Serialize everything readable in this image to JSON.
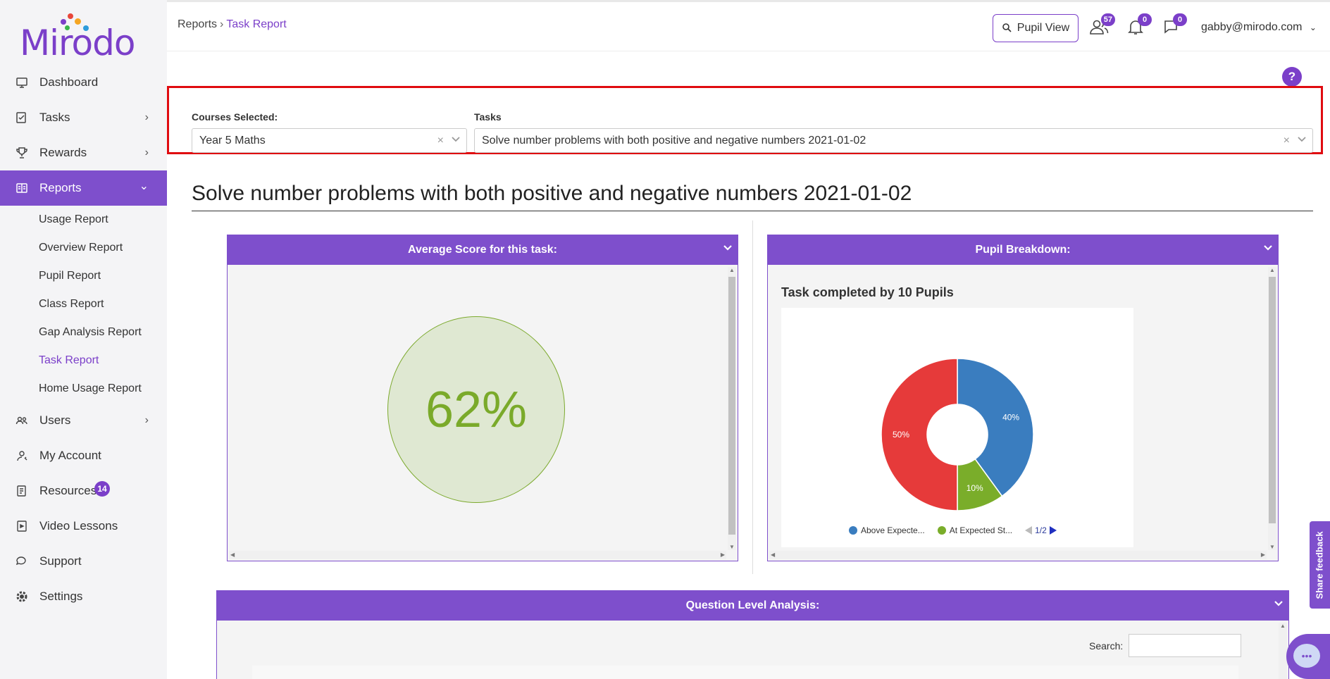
{
  "logo": {
    "text": "Mirodo"
  },
  "sidebar": {
    "items": [
      {
        "label": "Dashboard",
        "icon": "monitor-icon"
      },
      {
        "label": "Tasks",
        "icon": "tasks-icon",
        "chevron": "›"
      },
      {
        "label": "Rewards",
        "icon": "trophy-icon",
        "chevron": "›"
      },
      {
        "label": "Reports",
        "icon": "reports-icon",
        "chevron": "⌄",
        "active": true
      },
      {
        "label": "Users",
        "icon": "users-icon",
        "chevron": "›"
      },
      {
        "label": "My Account",
        "icon": "account-icon"
      },
      {
        "label": "Resources",
        "icon": "resources-icon",
        "badge": "14"
      },
      {
        "label": "Video Lessons",
        "icon": "video-icon"
      },
      {
        "label": "Support",
        "icon": "support-icon"
      },
      {
        "label": "Settings",
        "icon": "gear-icon"
      }
    ],
    "reports_sub": [
      "Usage Report",
      "Overview Report",
      "Pupil Report",
      "Class Report",
      "Gap Analysis Report",
      "Task Report",
      "Home Usage Report"
    ]
  },
  "header": {
    "breadcrumb_root": "Reports",
    "breadcrumb_sep": "›",
    "breadcrumb_current": "Task Report",
    "pupil_view": "Pupil View",
    "pupils_count": "57",
    "notifications_count": "0",
    "messages_count": "0",
    "user_email": "gabby@mirodo.com"
  },
  "filters": {
    "courses_label": "Courses Selected:",
    "courses_value": "Year 5 Maths",
    "tasks_label": "Tasks",
    "tasks_value": "Solve number problems with both positive and negative numbers 2021-01-02"
  },
  "page_title": "Solve number problems with both positive and negative numbers 2021-01-02",
  "average_panel": {
    "title": "Average Score for this task:",
    "score": "62%",
    "score_value": 62
  },
  "breakdown_panel": {
    "title": "Pupil Breakdown:",
    "chart_title": "Task completed by 10 Pupils",
    "legend_page": "1/2"
  },
  "chart_data": {
    "type": "pie",
    "title": "Task completed by 10 Pupils",
    "donut": true,
    "legend_placement": "bottom",
    "series": [
      {
        "name": "Above Expecte...",
        "value": 40,
        "label": "40%",
        "color": "#3a7dbf"
      },
      {
        "name": "At Expected St...",
        "value": 10,
        "label": "10%",
        "color": "#7aad2a"
      },
      {
        "value": 50,
        "label": "50%",
        "color": "#e63a3a"
      }
    ]
  },
  "qla_panel": {
    "title": "Question Level Analysis:",
    "search_label": "Search:"
  },
  "feedback": {
    "label": "Share feedback"
  },
  "colors": {
    "accent": "#7e4fcc",
    "highlight_border": "#e00b10",
    "score_green": "#7aaa2a"
  }
}
